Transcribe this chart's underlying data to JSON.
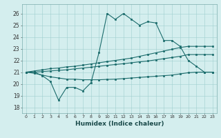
{
  "title": "",
  "xlabel": "Humidex (Indice chaleur)",
  "xlim": [
    -0.5,
    23.5
  ],
  "ylim": [
    17.5,
    26.8
  ],
  "yticks": [
    18,
    19,
    20,
    21,
    22,
    23,
    24,
    25,
    26
  ],
  "xticks": [
    0,
    1,
    2,
    3,
    4,
    5,
    6,
    7,
    8,
    9,
    10,
    11,
    12,
    13,
    14,
    15,
    16,
    17,
    18,
    19,
    20,
    21,
    22,
    23
  ],
  "bg_color": "#d4eeee",
  "line_color": "#1a6b6b",
  "line1_y": [
    21.0,
    21.0,
    20.7,
    20.2,
    18.6,
    19.7,
    19.7,
    19.4,
    20.1,
    22.7,
    26.0,
    25.5,
    26.0,
    25.5,
    25.0,
    25.3,
    25.2,
    23.7,
    23.7,
    23.2,
    22.0,
    21.5,
    21.0,
    21.0
  ],
  "line2_y": [
    21.0,
    21.1,
    21.2,
    21.3,
    21.35,
    21.45,
    21.5,
    21.6,
    21.7,
    21.8,
    21.9,
    22.0,
    22.1,
    22.2,
    22.35,
    22.5,
    22.65,
    22.8,
    22.95,
    23.1,
    23.2,
    23.2,
    23.2,
    23.2
  ],
  "line3_y": [
    21.0,
    21.0,
    21.05,
    21.1,
    21.15,
    21.2,
    21.28,
    21.35,
    21.42,
    21.5,
    21.58,
    21.65,
    21.72,
    21.8,
    21.88,
    21.95,
    22.05,
    22.15,
    22.25,
    22.35,
    22.5,
    22.5,
    22.5,
    22.5
  ],
  "line4_y": [
    21.0,
    20.9,
    20.75,
    20.6,
    20.5,
    20.4,
    20.4,
    20.35,
    20.35,
    20.35,
    20.38,
    20.4,
    20.45,
    20.5,
    20.55,
    20.6,
    20.65,
    20.7,
    20.75,
    20.85,
    20.95,
    21.0,
    21.0,
    21.0
  ]
}
